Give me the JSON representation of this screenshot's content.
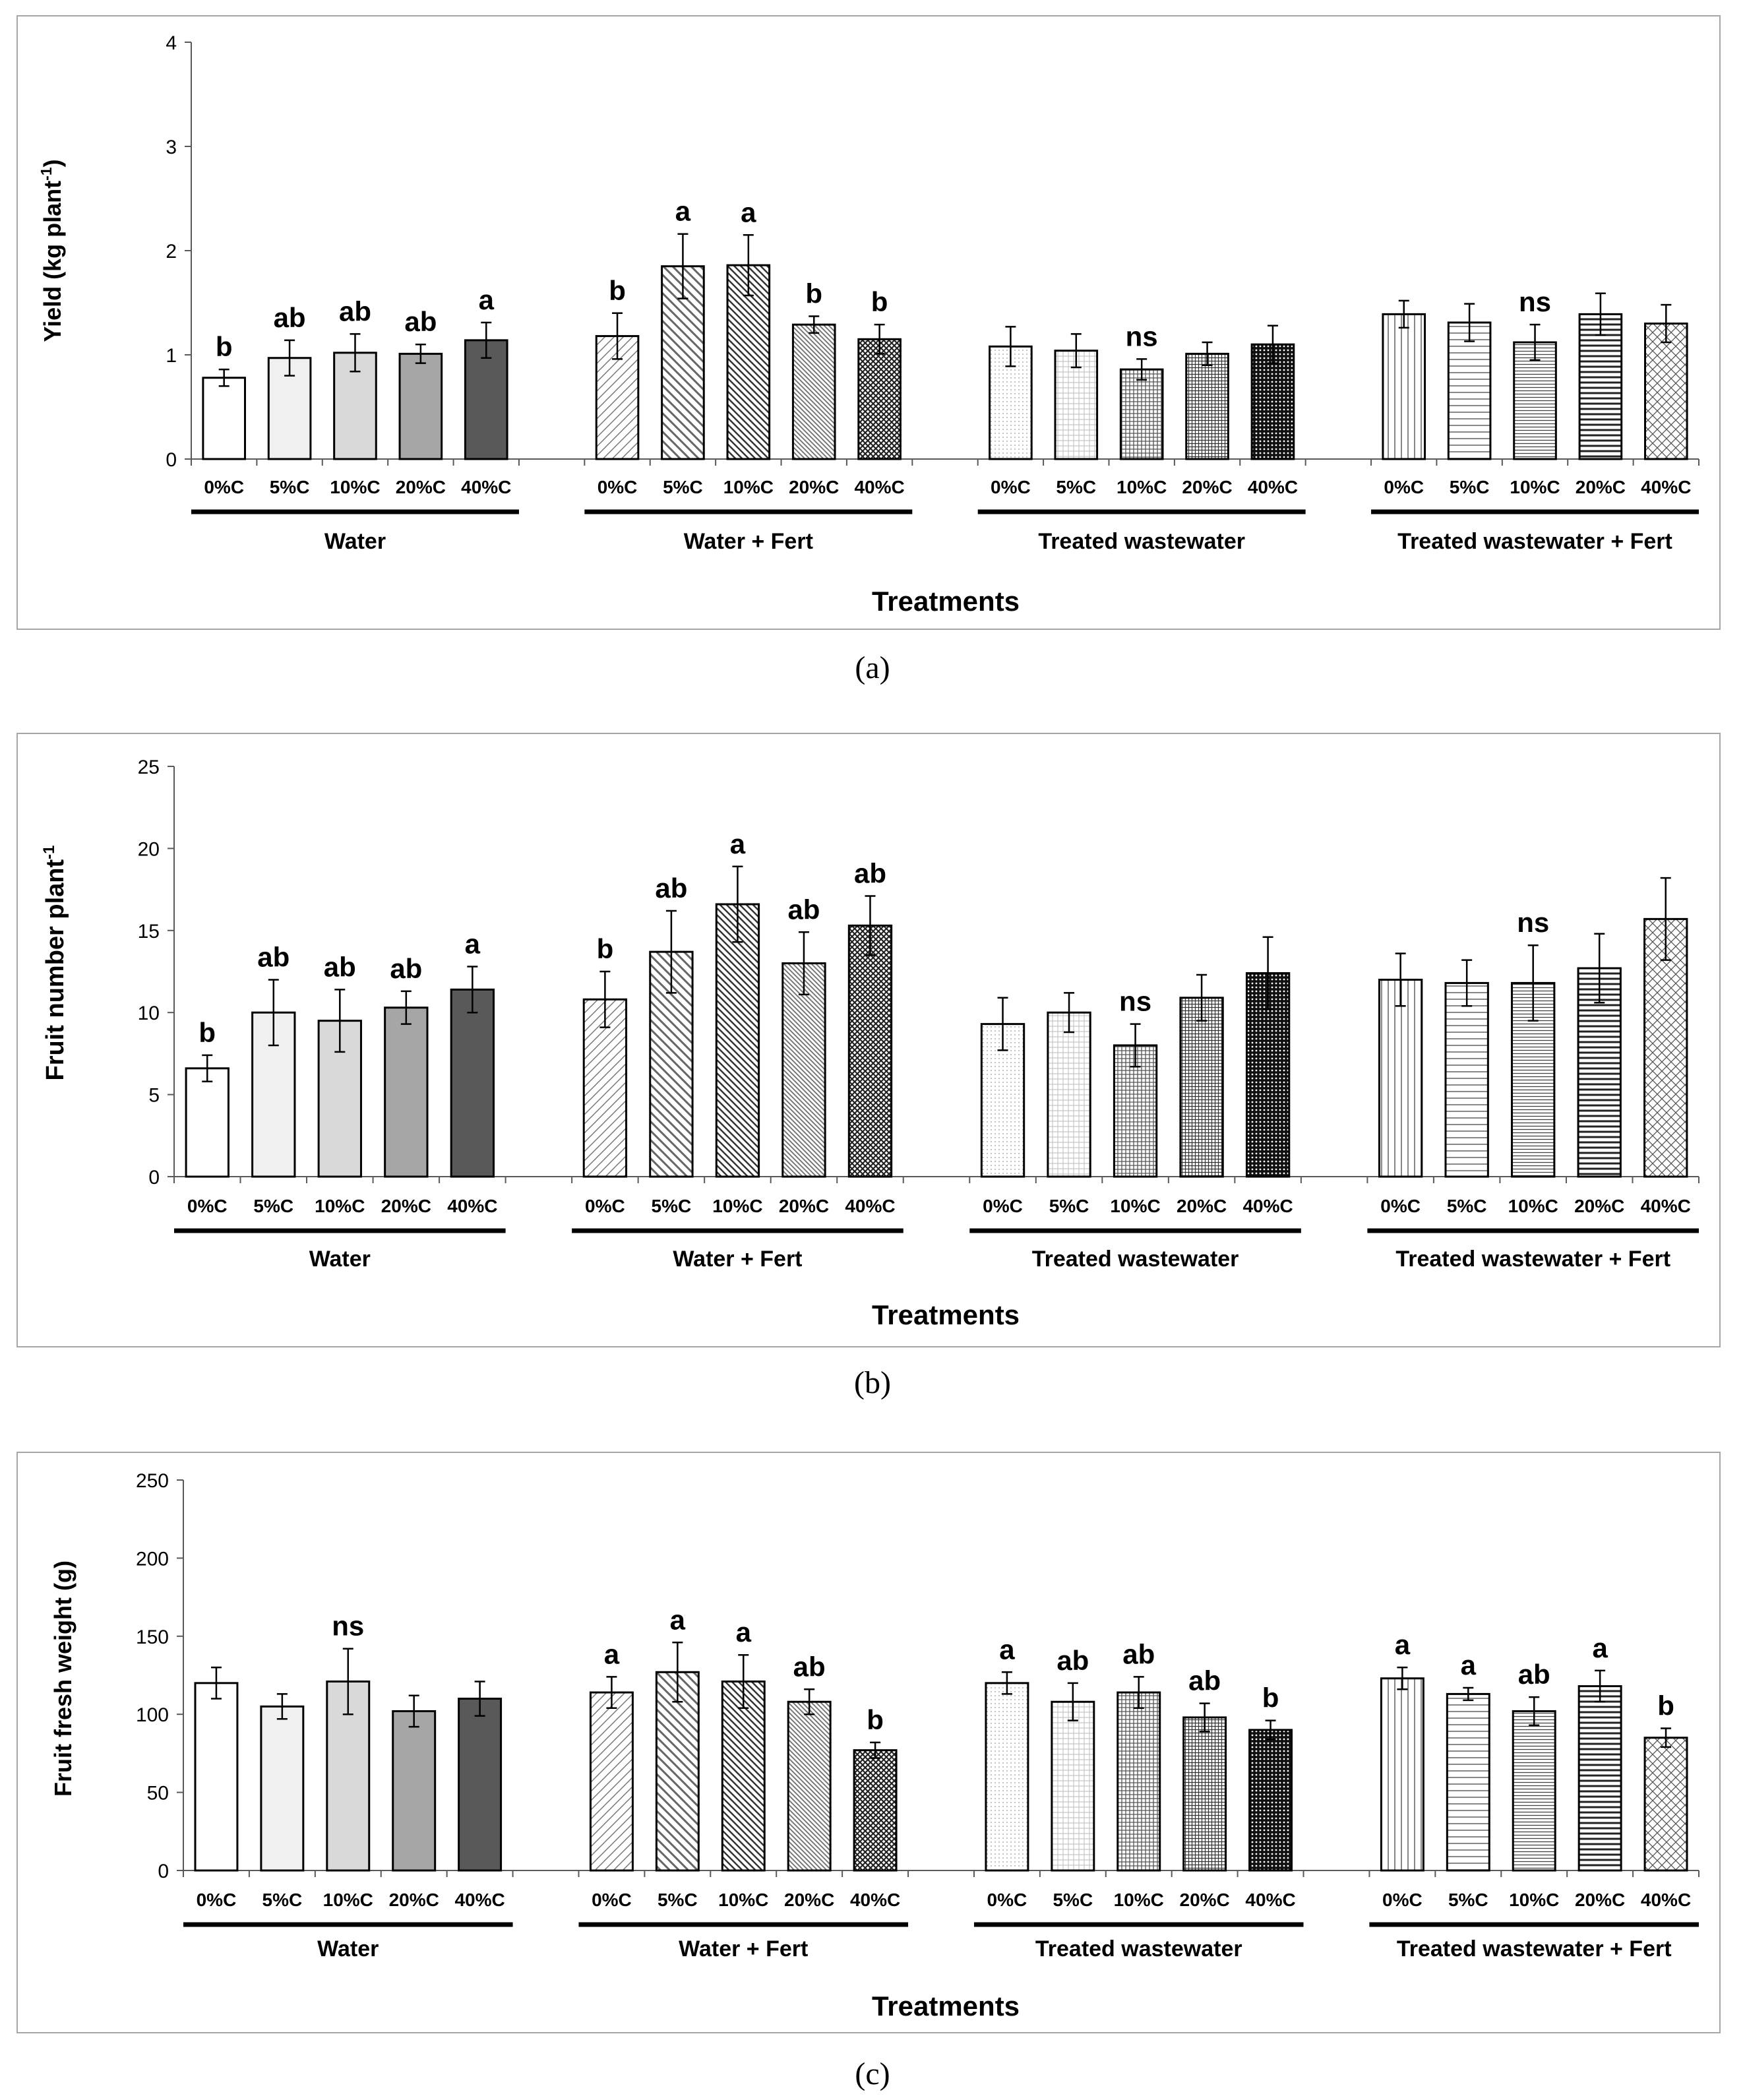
{
  "chart_data": [
    {
      "type": "bar",
      "panel": "(a)",
      "ylabel": "Yield (kg plant",
      "ylabel_sup": "-1",
      "ylabel_close": ")",
      "xlabel": "Treatments",
      "ylim": [
        0,
        4
      ],
      "yticks": [
        0,
        1,
        2,
        3,
        4
      ],
      "groups": [
        {
          "name": "Water",
          "categories": [
            "0%C",
            "5%C",
            "10%C",
            "20%C",
            "40%C"
          ],
          "values": [
            0.78,
            0.97,
            1.02,
            1.01,
            1.14
          ],
          "errors": [
            0.08,
            0.17,
            0.18,
            0.09,
            0.17
          ],
          "letters": [
            "b",
            "ab",
            "ab",
            "ab",
            "a"
          ]
        },
        {
          "name": "Water + Fert",
          "categories": [
            "0%C",
            "5%C",
            "10%C",
            "20%C",
            "40%C"
          ],
          "values": [
            1.18,
            1.85,
            1.86,
            1.29,
            1.15
          ],
          "errors": [
            0.22,
            0.31,
            0.29,
            0.08,
            0.14
          ],
          "letters": [
            "b",
            "a",
            "a",
            "b",
            "b"
          ]
        },
        {
          "name": "Treated wastewater",
          "categories": [
            "0%C",
            "5%C",
            "10%C",
            "20%C",
            "40%C"
          ],
          "values": [
            1.08,
            1.04,
            0.86,
            1.01,
            1.1
          ],
          "errors": [
            0.19,
            0.16,
            0.1,
            0.11,
            0.18
          ],
          "letters": [
            "",
            "",
            "ns",
            "",
            ""
          ]
        },
        {
          "name": "Treated wastewater + Fert",
          "categories": [
            "0%C",
            "5%C",
            "10%C",
            "20%C",
            "40%C"
          ],
          "values": [
            1.39,
            1.31,
            1.12,
            1.39,
            1.3
          ],
          "errors": [
            0.13,
            0.18,
            0.17,
            0.2,
            0.18
          ],
          "letters": [
            "",
            "",
            "ns",
            "",
            ""
          ]
        }
      ]
    },
    {
      "type": "bar",
      "panel": "(b)",
      "ylabel": "Fruit number plant",
      "ylabel_sup": "-1",
      "ylabel_close": "",
      "xlabel": "Treatments",
      "ylim": [
        0,
        25
      ],
      "yticks": [
        0,
        5,
        10,
        15,
        20,
        25
      ],
      "groups": [
        {
          "name": "Water",
          "categories": [
            "0%C",
            "5%C",
            "10%C",
            "20%C",
            "40%C"
          ],
          "values": [
            6.6,
            10.0,
            9.5,
            10.3,
            11.4
          ],
          "errors": [
            0.8,
            2.0,
            1.9,
            1.0,
            1.4
          ],
          "letters": [
            "b",
            "ab",
            "ab",
            "ab",
            "a"
          ]
        },
        {
          "name": "Water + Fert",
          "categories": [
            "0%C",
            "5%C",
            "10%C",
            "20%C",
            "40%C"
          ],
          "values": [
            10.8,
            13.7,
            16.6,
            13.0,
            15.3
          ],
          "errors": [
            1.7,
            2.5,
            2.3,
            1.9,
            1.8
          ],
          "letters": [
            "b",
            "ab",
            "a",
            "ab",
            "ab"
          ]
        },
        {
          "name": "Treated wastewater",
          "categories": [
            "0%C",
            "5%C",
            "10%C",
            "20%C",
            "40%C"
          ],
          "values": [
            9.3,
            10.0,
            8.0,
            10.9,
            12.4
          ],
          "errors": [
            1.6,
            1.2,
            1.3,
            1.4,
            2.2
          ],
          "letters": [
            "",
            "",
            "ns",
            "",
            ""
          ]
        },
        {
          "name": "Treated wastewater + Fert",
          "categories": [
            "0%C",
            "5%C",
            "10%C",
            "20%C",
            "40%C"
          ],
          "values": [
            12.0,
            11.8,
            11.8,
            12.7,
            15.7
          ],
          "errors": [
            1.6,
            1.4,
            2.3,
            2.1,
            2.5
          ],
          "letters": [
            "",
            "",
            "ns",
            "",
            ""
          ]
        }
      ]
    },
    {
      "type": "bar",
      "panel": "(c)",
      "ylabel": "Fruit fresh weight (g)",
      "ylabel_sup": "",
      "ylabel_close": "",
      "xlabel": "Treatments",
      "ylim": [
        0,
        250
      ],
      "yticks": [
        0,
        50,
        100,
        150,
        200,
        250
      ],
      "groups": [
        {
          "name": "Water",
          "categories": [
            "0%C",
            "5%C",
            "10%C",
            "20%C",
            "40%C"
          ],
          "values": [
            120,
            105,
            121,
            102,
            110
          ],
          "errors": [
            10,
            8,
            21,
            10,
            11
          ],
          "letters": [
            "",
            "",
            "ns",
            "",
            ""
          ]
        },
        {
          "name": "Water + Fert",
          "categories": [
            "0%C",
            "5%C",
            "10%C",
            "20%C",
            "40%C"
          ],
          "values": [
            114,
            127,
            121,
            108,
            77
          ],
          "errors": [
            10,
            19,
            17,
            8,
            5
          ],
          "letters": [
            "a",
            "a",
            "a",
            "ab",
            "b"
          ]
        },
        {
          "name": "Treated wastewater",
          "categories": [
            "0%C",
            "5%C",
            "10%C",
            "20%C",
            "40%C"
          ],
          "values": [
            120,
            108,
            114,
            98,
            90
          ],
          "errors": [
            7,
            12,
            10,
            9,
            6
          ],
          "letters": [
            "a",
            "ab",
            "ab",
            "ab",
            "b"
          ]
        },
        {
          "name": "Treated wastewater + Fert",
          "categories": [
            "0%C",
            "5%C",
            "10%C",
            "20%C",
            "40%C"
          ],
          "values": [
            123,
            113,
            102,
            118,
            85
          ],
          "errors": [
            7,
            4,
            9,
            10,
            6
          ],
          "letters": [
            "a",
            "a",
            "ab",
            "a",
            "b"
          ]
        }
      ]
    }
  ],
  "colors": {
    "water": [
      "#ffffff",
      "#f0f0f0",
      "#d9d9d9",
      "#a6a6a6",
      "#595959"
    ],
    "outline": "#000000",
    "axis": "#595959",
    "frame": "#a6a6a6"
  }
}
